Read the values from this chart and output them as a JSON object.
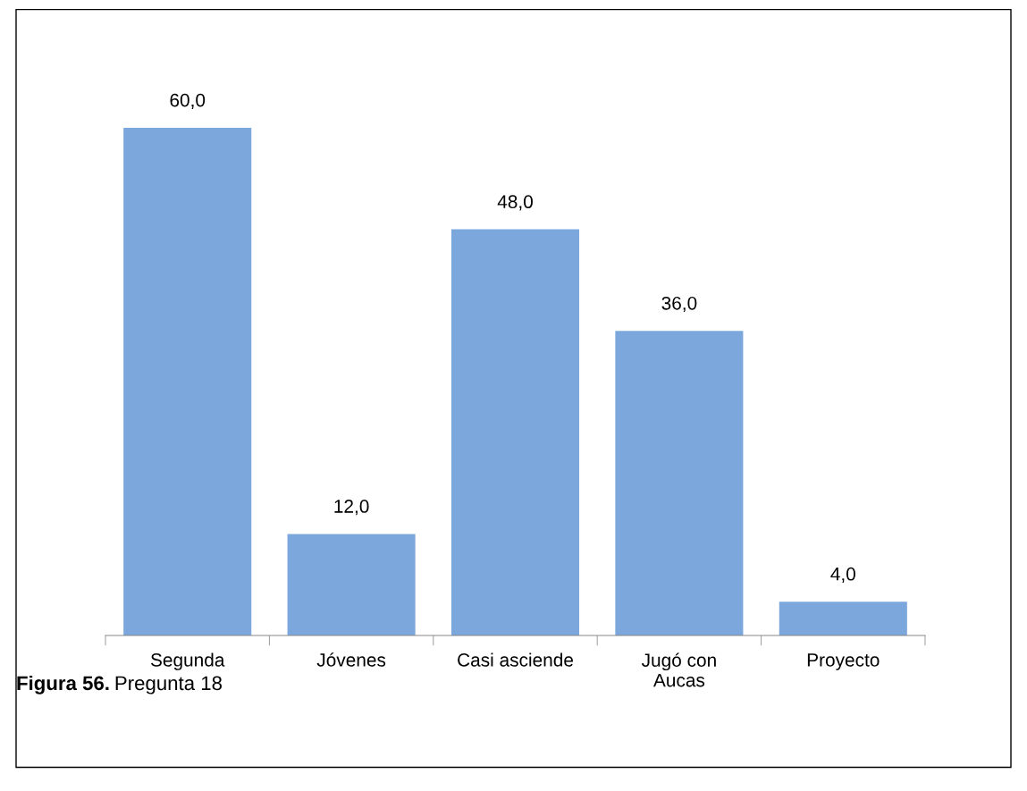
{
  "chart_data": {
    "type": "bar",
    "categories": [
      "Segunda",
      "Jóvenes",
      "Casi asciende",
      "Jugó con\nAucas",
      "Proyecto"
    ],
    "values": [
      60.0,
      12.0,
      48.0,
      36.0,
      4.0
    ],
    "value_labels": [
      "60,0",
      "12,0",
      "48,0",
      "36,0",
      "4,0"
    ],
    "color": "#7ba7dc",
    "annotations": [
      "Figura 56.",
      "Pregunta 18"
    ]
  }
}
